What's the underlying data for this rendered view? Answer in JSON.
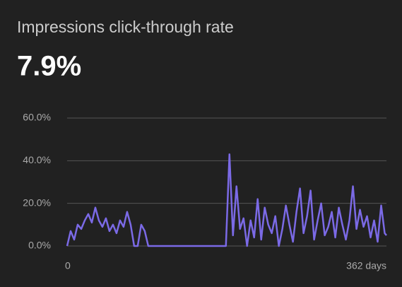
{
  "chart_data": {
    "type": "line",
    "title": "Impressions click-through rate",
    "subtitle": "7.9%",
    "x": [
      0,
      4,
      8,
      12,
      16,
      20,
      24,
      28,
      32,
      36,
      40,
      44,
      48,
      52,
      56,
      60,
      64,
      68,
      72,
      76,
      80,
      84,
      88,
      92,
      96,
      100,
      104,
      108,
      112,
      116,
      120,
      124,
      128,
      132,
      136,
      140,
      144,
      148,
      152,
      156,
      160,
      164,
      168,
      172,
      176,
      180,
      184,
      188,
      192,
      196,
      200,
      204,
      208,
      212,
      216,
      220,
      224,
      228,
      232,
      236,
      240,
      244,
      248,
      252,
      256,
      260,
      264,
      268,
      272,
      276,
      280,
      284,
      288,
      292,
      296,
      300,
      304,
      308,
      312,
      316,
      320,
      324,
      328,
      332,
      336,
      340,
      344,
      348,
      352,
      356,
      360,
      362
    ],
    "series": [
      {
        "color": "#7b6ae6",
        "values": [
          0,
          7,
          3,
          10,
          8,
          12,
          15,
          11,
          18,
          12,
          9,
          13,
          7,
          10,
          6,
          12,
          9,
          16,
          10,
          0,
          0,
          10,
          7,
          0,
          0,
          0,
          0,
          0,
          0,
          0,
          0,
          0,
          0,
          0,
          0,
          0,
          0,
          0,
          0,
          0,
          0,
          0,
          0,
          0,
          0,
          0,
          43,
          5,
          28,
          8,
          13,
          0,
          12,
          4,
          22,
          3,
          18,
          10,
          6,
          14,
          0,
          8,
          19,
          10,
          2,
          16,
          27,
          6,
          14,
          26,
          3,
          12,
          20,
          5,
          9,
          16,
          4,
          18,
          10,
          3,
          12,
          28,
          8,
          17,
          9,
          14,
          4,
          12,
          2,
          19,
          6,
          5
        ]
      }
    ],
    "xlim": [
      0,
      362
    ],
    "xticks": [
      0,
      {
        "value": 362,
        "label": "362 days"
      }
    ],
    "ylim": [
      0,
      60
    ],
    "yticks": [
      {
        "value": 0,
        "label": "0.0%"
      },
      {
        "value": 20,
        "label": "20.0%"
      },
      {
        "value": 40,
        "label": "40.0%"
      },
      {
        "value": 60,
        "label": "60.0%"
      }
    ],
    "grid": true
  }
}
